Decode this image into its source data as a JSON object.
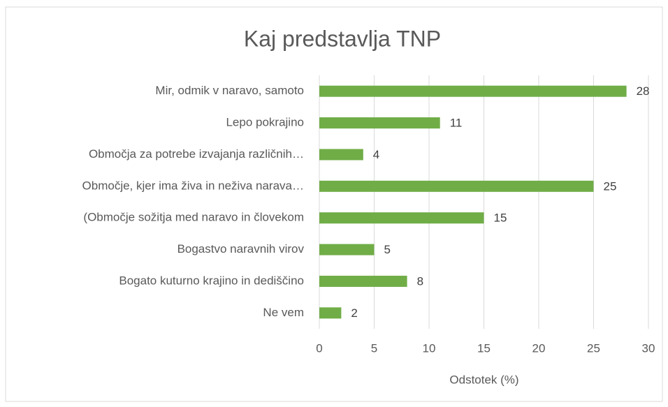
{
  "chart_data": {
    "type": "bar",
    "orientation": "horizontal",
    "title": "Kaj predstavlja TNP",
    "x_label": "Odstotek (%)",
    "categories": [
      "Mir, odmik v naravo, samoto",
      "Lepo pokrajino",
      "Območja za potrebe izvajanja različnih…",
      "Območje, kjer ima živa in neživa narava…",
      "(Območje sožitja med naravo in človekom",
      "Bogastvo naravnih virov",
      "Bogato kuturno krajino in dediščino",
      "Ne vem"
    ],
    "values": [
      28,
      11,
      4,
      25,
      15,
      5,
      8,
      2
    ],
    "color": "#70ad47",
    "xlim": [
      0,
      30
    ],
    "xticks": [
      0,
      5,
      10,
      15,
      20,
      25,
      30
    ],
    "grid": true
  }
}
